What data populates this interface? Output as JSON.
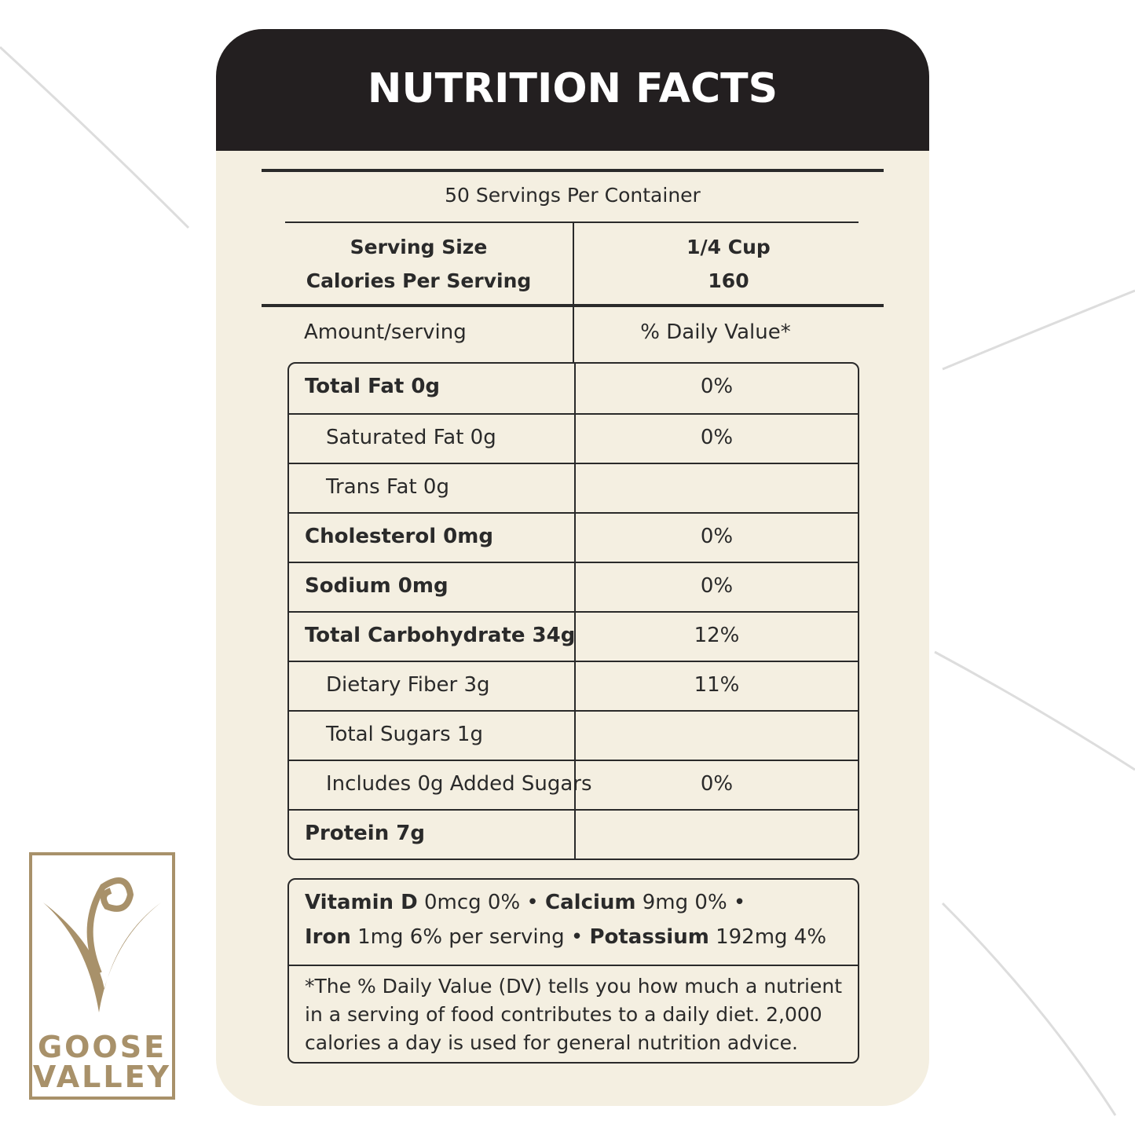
{
  "header": {
    "title": "NUTRITION FACTS"
  },
  "servings": "50 Servings Per Container",
  "serving_size": {
    "label": "Serving Size",
    "value": "1/4 Cup"
  },
  "calories": {
    "label": "Calories Per Serving",
    "value": "160"
  },
  "columns": [
    "Amount/serving",
    "% Daily Value*"
  ],
  "rows": [
    {
      "name": "Total Fat 0g",
      "dv": "0%",
      "sub": false
    },
    {
      "name": "Saturated Fat 0g",
      "dv": "0%",
      "sub": true
    },
    {
      "name": "Trans Fat 0g",
      "dv": null,
      "sub": true
    },
    {
      "name": "Cholesterol 0mg",
      "dv": "0%",
      "sub": false
    },
    {
      "name": "Sodium 0mg",
      "dv": "0%",
      "sub": false
    },
    {
      "name": "Total Carbohydrate 34g",
      "dv": "12%",
      "sub": false
    },
    {
      "name": "Dietary Fiber 3g",
      "dv": "11%",
      "sub": true
    },
    {
      "name": "Total Sugars 1g",
      "dv": null,
      "sub": true
    },
    {
      "name": "Includes 0g Added Sugars",
      "dv": "0%",
      "sub": true
    },
    {
      "name": "Protein 7g",
      "dv": null,
      "sub": false
    }
  ],
  "minerals": [
    {
      "name": "Vitamin D",
      "amount": "0mcg 0%"
    },
    {
      "name": "Calcium",
      "amount": "9mg 0%"
    },
    {
      "name": "Iron",
      "amount": "1mg 6% per serving"
    },
    {
      "name": "Potassium",
      "amount": "192mg 4%"
    }
  ],
  "footnote": "*The % Daily Value (DV) tells you how much a nutrient in a serving of food contributes to a daily diet. 2,000 calories a day is used for general nutrition advice.",
  "logo": {
    "line1": "GOOSE",
    "line2": "VALLEY"
  }
}
